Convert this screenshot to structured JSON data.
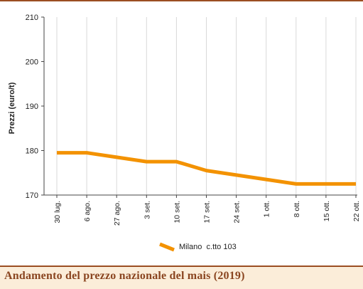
{
  "chart_data": {
    "type": "line",
    "categories": [
      "30 lug.",
      "6 ago.",
      "27 ago.",
      "3 set.",
      "10 set.",
      "17 set.",
      "24 set.",
      "1 ott.",
      "8 ott.",
      "15 ott.",
      "22 ott."
    ],
    "series": [
      {
        "name": "Milano  c.tto 103",
        "values": [
          179.5,
          179.5,
          178.5,
          177.5,
          177.5,
          175.5,
          174.5,
          173.5,
          172.5,
          172.5,
          172.5
        ],
        "color": "#f39200"
      }
    ],
    "ylabel": "Prezzi (euro/t)",
    "yticks": [
      170,
      180,
      190,
      200,
      210
    ],
    "ylim": [
      170,
      210
    ],
    "grid": "vertical",
    "legend": "bottom-center"
  },
  "caption": "Andamento del prezzo nazionale del mais (2019)",
  "colors": {
    "line": "#f39200",
    "rule": "#9b4e22",
    "caption_bg": "#fbedd9",
    "caption_text": "#8a4520",
    "grid": "#d9d9d9"
  }
}
